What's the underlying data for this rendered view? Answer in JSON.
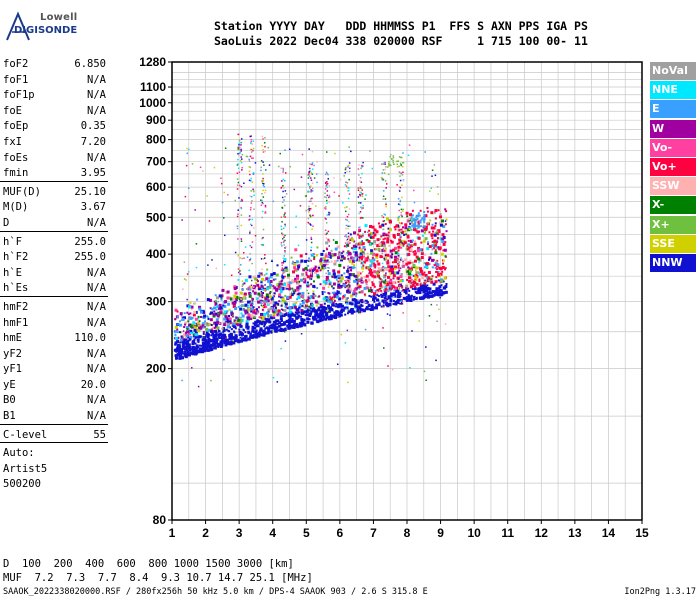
{
  "logo": {
    "line1": "Lowell",
    "line2": "DIGISONDE"
  },
  "header": {
    "line1": "Station YYYY DAY   DDD HHMMSS P1  FFS S AXN PPS IGA PS",
    "line2": "SaoLuis 2022 Dec04 338 020000 RSF     1 715 100 00- 11"
  },
  "params": {
    "group1": [
      {
        "label": "foF2",
        "value": "6.850"
      },
      {
        "label": "foF1",
        "value": "N/A"
      },
      {
        "label": "foF1p",
        "value": "N/A"
      },
      {
        "label": "foE",
        "value": "N/A"
      },
      {
        "label": "foEp",
        "value": "0.35"
      },
      {
        "label": "fxI",
        "value": "7.20"
      },
      {
        "label": "foEs",
        "value": "N/A"
      },
      {
        "label": "fmin",
        "value": "3.95"
      }
    ],
    "group2": [
      {
        "label": "MUF(D)",
        "value": "25.10"
      },
      {
        "label": "M(D)",
        "value": "3.67"
      },
      {
        "label": "D",
        "value": "N/A"
      }
    ],
    "group3": [
      {
        "label": "h`F",
        "value": "255.0"
      },
      {
        "label": "h`F2",
        "value": "255.0"
      },
      {
        "label": "h`E",
        "value": "N/A"
      },
      {
        "label": "h`Es",
        "value": "N/A"
      }
    ],
    "group4": [
      {
        "label": "hmF2",
        "value": "N/A"
      },
      {
        "label": "hmF1",
        "value": "N/A"
      },
      {
        "label": "hmE",
        "value": "110.0"
      },
      {
        "label": "yF2",
        "value": "N/A"
      },
      {
        "label": "yF1",
        "value": "N/A"
      },
      {
        "label": "yE",
        "value": "20.0"
      },
      {
        "label": "B0",
        "value": "N/A"
      },
      {
        "label": "B1",
        "value": "N/A"
      }
    ],
    "group5": [
      {
        "label": "C-level",
        "value": "55"
      }
    ],
    "auto_lines": [
      "Auto:",
      "Artist5",
      "500200"
    ]
  },
  "legend": [
    {
      "label": "NoVal",
      "color": "#a0a0a0"
    },
    {
      "label": "NNE",
      "color": "#00e8ff"
    },
    {
      "label": "E",
      "color": "#3aa0ff"
    },
    {
      "label": "W",
      "color": "#a000a0"
    },
    {
      "label": "Vo-",
      "color": "#ff40a0"
    },
    {
      "label": "Vo+",
      "color": "#ff0040"
    },
    {
      "label": "SSW",
      "color": "#ffb0b0"
    },
    {
      "label": "X-",
      "color": "#008000"
    },
    {
      "label": "X+",
      "color": "#70c040"
    },
    {
      "label": "SSE",
      "color": "#d0d000"
    },
    {
      "label": "NNW",
      "color": "#1010d0"
    }
  ],
  "chart_data": {
    "type": "scatter",
    "title": "",
    "xlabel": "",
    "ylabel": "",
    "xlim": [
      1,
      15
    ],
    "ylim": [
      80,
      1280
    ],
    "y_scale": "log",
    "x_ticks": [
      1,
      2,
      3,
      4,
      5,
      6,
      7,
      8,
      9,
      10,
      11,
      12,
      13,
      14,
      15
    ],
    "y_ticks": [
      80,
      200,
      300,
      400,
      500,
      600,
      700,
      800,
      900,
      1000,
      1100,
      1280
    ],
    "grid": true,
    "trace_outline": [
      [
        1.1,
        215
      ],
      [
        2.0,
        228
      ],
      [
        3.0,
        240
      ],
      [
        4.0,
        250
      ],
      [
        5.0,
        260
      ],
      [
        6.0,
        272
      ],
      [
        7.0,
        285
      ],
      [
        8.0,
        300
      ],
      [
        9.0,
        310
      ],
      [
        9.1,
        330
      ],
      [
        8.6,
        430
      ],
      [
        8.0,
        470
      ],
      [
        7.0,
        420
      ],
      [
        6.0,
        380
      ],
      [
        5.0,
        360
      ],
      [
        4.0,
        340
      ],
      [
        3.0,
        320
      ],
      [
        2.0,
        290
      ],
      [
        1.1,
        240
      ]
    ],
    "reference_points": [
      {
        "x": 1.1,
        "y": 213
      },
      {
        "x": 2.0,
        "y": 225
      },
      {
        "x": 3.0,
        "y": 238
      },
      {
        "x": 4.0,
        "y": 250
      },
      {
        "x": 5.0,
        "y": 258
      },
      {
        "x": 6.0,
        "y": 270
      },
      {
        "x": 7.0,
        "y": 285
      },
      {
        "x": 8.0,
        "y": 300
      },
      {
        "x": 9.0,
        "y": 310
      },
      {
        "x": 8.5,
        "y": 500
      },
      {
        "x": 7.8,
        "y": 700
      },
      {
        "x": 3.0,
        "y": 830
      }
    ]
  },
  "bottom": {
    "d_label": "D",
    "d_values": "  100  200  400  600  800 1000 1500 3000 [km]",
    "muf_label": "MUF",
    "muf_values": "  7.2  7.3  7.7  8.4  9.3 10.7 14.7 25.1 [MHz]"
  },
  "footer": "SAAOK_2022338020000.RSF / 280fx256h 50 kHz 5.0 km / DPS-4 SAAOK 903 / 2.6 S 315.8 E",
  "version": "Ion2Png 1.3.17"
}
